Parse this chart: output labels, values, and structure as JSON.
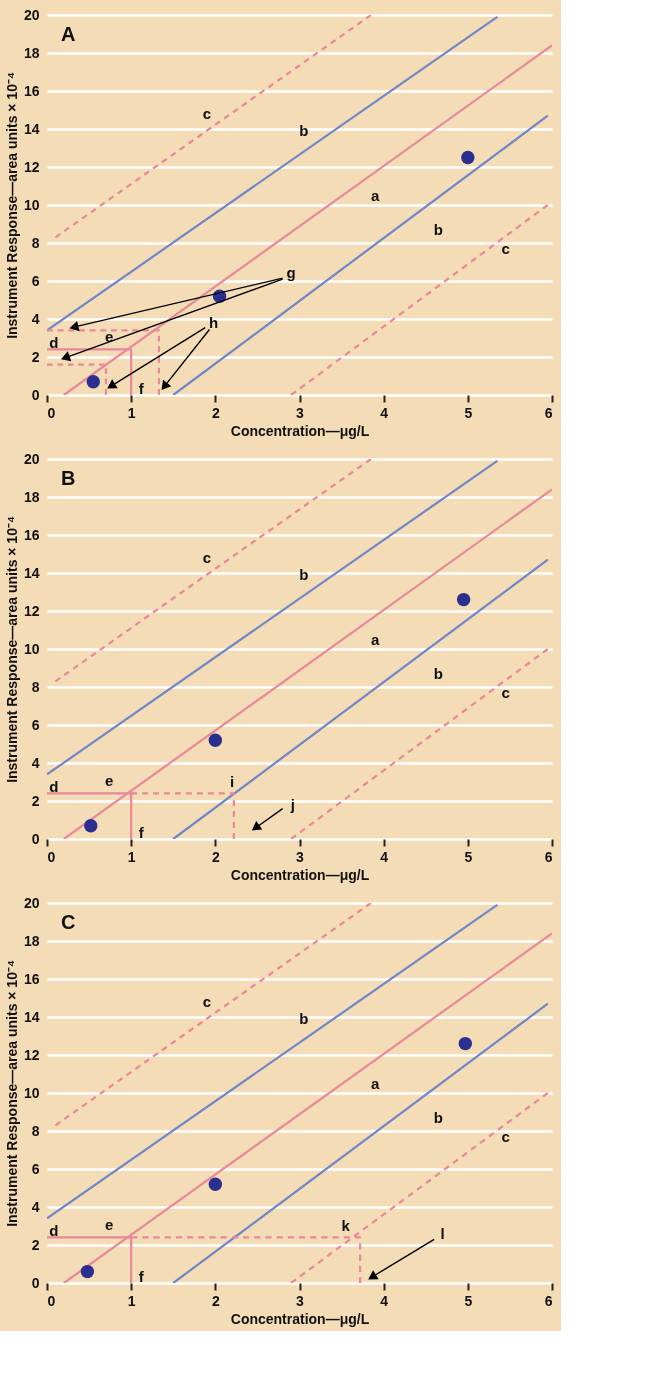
{
  "chart_data": [
    {
      "type": "line",
      "title": "A",
      "xlabel": "Concentration—μg/L",
      "ylabel": "Instrument Response—area units × 10⁻⁴",
      "xlim": [
        0,
        6
      ],
      "ylim": [
        0,
        20
      ],
      "xticks": [
        0,
        1,
        2,
        3,
        4,
        5,
        6
      ],
      "yticks": [
        0,
        2,
        4,
        6,
        8,
        10,
        12,
        14,
        16,
        18,
        20
      ],
      "grid": "y",
      "series": [
        {
          "color": "#e8889a",
          "x": [
            0.2,
            6
          ],
          "values": [
            0,
            18.4
          ]
        },
        {
          "color": "#6f86c9",
          "x": [
            0,
            5.35
          ],
          "values": [
            3.4,
            19.9
          ]
        },
        {
          "color": "#6f86c9",
          "x": [
            1.5,
            5.95
          ],
          "values": [
            0,
            14.7
          ]
        },
        {
          "color": "#e8889a",
          "x": [
            0.1,
            3.85
          ],
          "values": [
            8.3,
            20
          ],
          "line_style": "dashed"
        },
        {
          "color": "#e8889a",
          "x": [
            2.9,
            5.95
          ],
          "values": [
            0,
            10
          ],
          "line_style": "dashed"
        },
        {
          "color": "#e8889a",
          "x": [
            0,
            1,
            1
          ],
          "values": [
            2.4,
            2.4,
            0
          ]
        },
        {
          "color": "#e8889a",
          "x": [
            0,
            1.33,
            1.33
          ],
          "values": [
            3.4,
            3.4,
            0
          ],
          "line_style": "dashed"
        },
        {
          "color": "#e8889a",
          "x": [
            0,
            0.7,
            0.7
          ],
          "values": [
            1.6,
            1.6,
            0
          ],
          "line_style": "dashed"
        },
        {
          "type": "scatter",
          "marker": "circle",
          "color": "#2b2f8f",
          "x": [
            0.55,
            2.05,
            5.0
          ],
          "values": [
            0.7,
            5.2,
            12.5
          ]
        }
      ],
      "annotations": [
        "a",
        "b",
        "b",
        "c",
        "c",
        "d",
        "e",
        "f",
        "g",
        {
          "text": "h",
          "x": 0.7,
          "y": 0.3
        }
      ]
    },
    {
      "type": "line",
      "title": "B",
      "xlabel": "Concentration—μg/L",
      "ylabel": "Instrument Response—area units × 10⁻⁴",
      "xlim": [
        0,
        6
      ],
      "ylim": [
        0,
        20
      ],
      "xticks": [
        0,
        1,
        2,
        3,
        4,
        5,
        6
      ],
      "yticks": [
        0,
        2,
        4,
        6,
        8,
        10,
        12,
        14,
        16,
        18,
        20
      ],
      "grid": "y",
      "series": [
        {
          "color": "#e8889a",
          "x": [
            0.2,
            6
          ],
          "values": [
            0,
            18.4
          ]
        },
        {
          "color": "#6f86c9",
          "x": [
            0,
            5.35
          ],
          "values": [
            3.4,
            19.9
          ]
        },
        {
          "color": "#6f86c9",
          "x": [
            1.5,
            5.95
          ],
          "values": [
            0,
            14.7
          ]
        },
        {
          "color": "#e8889a",
          "x": [
            0.1,
            3.85
          ],
          "values": [
            8.3,
            20
          ],
          "line_style": "dashed"
        },
        {
          "color": "#e8889a",
          "x": [
            2.9,
            5.95
          ],
          "values": [
            0,
            10
          ],
          "line_style": "dashed"
        },
        {
          "color": "#e8889a",
          "x": [
            0,
            1,
            1
          ],
          "values": [
            2.4,
            2.4,
            0
          ]
        },
        {
          "color": "#e8889a",
          "x": [
            1,
            2.22,
            2.22
          ],
          "values": [
            2.4,
            2.4,
            0
          ],
          "line_style": "dashed"
        },
        {
          "type": "scatter",
          "marker": "circle",
          "color": "#2b2f8f",
          "x": [
            0.52,
            2.0,
            4.95
          ],
          "values": [
            0.7,
            5.2,
            12.6
          ]
        }
      ],
      "annotations": [
        "a",
        "b",
        "b",
        "c",
        "c",
        "d",
        "e",
        "f",
        "i",
        "j"
      ]
    },
    {
      "type": "line",
      "title": "C",
      "xlabel": "Concentration—μg/L",
      "ylabel": "Instrument Response—area units × 10⁻⁴",
      "xlim": [
        0,
        6
      ],
      "ylim": [
        0,
        20
      ],
      "xticks": [
        0,
        1,
        2,
        3,
        4,
        5,
        6
      ],
      "yticks": [
        0,
        2,
        4,
        6,
        8,
        10,
        12,
        14,
        16,
        18,
        20
      ],
      "grid": "y",
      "series": [
        {
          "color": "#e8889a",
          "x": [
            0.2,
            6
          ],
          "values": [
            0,
            18.4
          ]
        },
        {
          "color": "#6f86c9",
          "x": [
            0,
            5.35
          ],
          "values": [
            3.4,
            19.9
          ]
        },
        {
          "color": "#6f86c9",
          "x": [
            1.5,
            5.95
          ],
          "values": [
            0,
            14.7
          ]
        },
        {
          "color": "#e8889a",
          "x": [
            0.1,
            3.85
          ],
          "values": [
            8.3,
            20
          ],
          "line_style": "dashed"
        },
        {
          "color": "#e8889a",
          "x": [
            2.9,
            5.95
          ],
          "values": [
            0,
            10
          ],
          "line_style": "dashed"
        },
        {
          "color": "#e8889a",
          "x": [
            0,
            1,
            1
          ],
          "values": [
            2.4,
            2.4,
            0
          ]
        },
        {
          "color": "#e8889a",
          "x": [
            1,
            3.72,
            3.72
          ],
          "values": [
            2.4,
            2.4,
            0
          ],
          "line_style": "dashed"
        },
        {
          "type": "scatter",
          "marker": "circle",
          "color": "#2b2f8f",
          "x": [
            0.48,
            2.0,
            4.97
          ],
          "values": [
            0.6,
            5.2,
            12.6
          ]
        }
      ],
      "annotations": [
        "a",
        "b",
        "b",
        "c",
        "c",
        "d",
        "e",
        "f",
        "k",
        "l"
      ]
    }
  ]
}
